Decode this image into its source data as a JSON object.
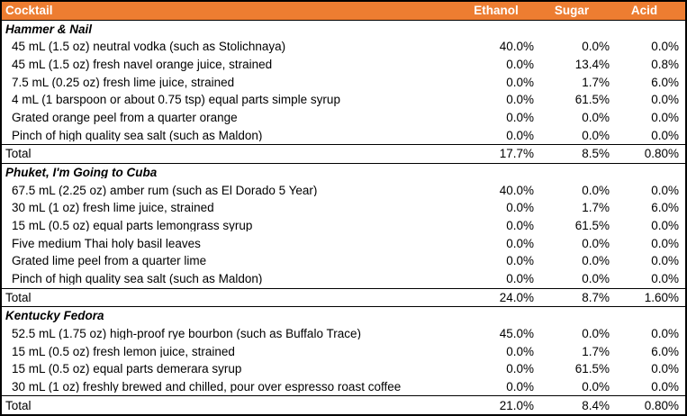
{
  "colors": {
    "header_bg": "#ED7D31",
    "header_text": "#FFFFFF",
    "border": "#000000"
  },
  "header": {
    "cocktail": "Cocktail",
    "ethanol": "Ethanol",
    "sugar": "Sugar",
    "acid": "Acid"
  },
  "sections": [
    {
      "name": "Hammer & Nail",
      "rows": [
        {
          "ingredient": "45 mL (1.5 oz) neutral vodka (such as Stolichnaya)",
          "ethanol": "40.0%",
          "sugar": "0.0%",
          "acid": "0.0%"
        },
        {
          "ingredient": "45 mL (1.5 oz) fresh navel orange juice, strained",
          "ethanol": "0.0%",
          "sugar": "13.4%",
          "acid": "0.8%"
        },
        {
          "ingredient": "7.5 mL (0.25 oz) fresh lime juice, strained",
          "ethanol": "0.0%",
          "sugar": "1.7%",
          "acid": "6.0%"
        },
        {
          "ingredient": "4 mL (1 barspoon or about 0.75 tsp) equal parts simple syrup",
          "ethanol": "0.0%",
          "sugar": "61.5%",
          "acid": "0.0%"
        },
        {
          "ingredient": "Grated orange peel from a quarter orange",
          "ethanol": "0.0%",
          "sugar": "0.0%",
          "acid": "0.0%"
        },
        {
          "ingredient": "Pinch of high quality sea salt (such as Maldon)",
          "ethanol": "0.0%",
          "sugar": "0.0%",
          "acid": "0.0%"
        }
      ],
      "total": {
        "label": "Total",
        "ethanol": "17.7%",
        "sugar": "8.5%",
        "acid": "0.80%"
      }
    },
    {
      "name": "Phuket, I'm Going to Cuba",
      "rows": [
        {
          "ingredient": "67.5 mL (2.25 oz) amber rum (such as El Dorado 5 Year)",
          "ethanol": "40.0%",
          "sugar": "0.0%",
          "acid": "0.0%"
        },
        {
          "ingredient": "30 mL (1 oz) fresh lime juice, strained",
          "ethanol": "0.0%",
          "sugar": "1.7%",
          "acid": "6.0%"
        },
        {
          "ingredient": "15 mL (0.5 oz) equal parts lemongrass syrup",
          "ethanol": "0.0%",
          "sugar": "61.5%",
          "acid": "0.0%"
        },
        {
          "ingredient": "Five medium Thai holy basil leaves",
          "ethanol": "0.0%",
          "sugar": "0.0%",
          "acid": "0.0%"
        },
        {
          "ingredient": "Grated lime peel from a quarter lime",
          "ethanol": "0.0%",
          "sugar": "0.0%",
          "acid": "0.0%"
        },
        {
          "ingredient": "Pinch of high quality sea salt (such as Maldon)",
          "ethanol": "0.0%",
          "sugar": "0.0%",
          "acid": "0.0%"
        }
      ],
      "total": {
        "label": "Total",
        "ethanol": "24.0%",
        "sugar": "8.7%",
        "acid": "1.60%"
      }
    },
    {
      "name": "Kentucky Fedora",
      "rows": [
        {
          "ingredient": "52.5 mL (1.75 oz) high-proof rye bourbon (such as Buffalo Trace)",
          "ethanol": "45.0%",
          "sugar": "0.0%",
          "acid": "0.0%"
        },
        {
          "ingredient": "15 mL (0.5 oz) fresh lemon juice, strained",
          "ethanol": "0.0%",
          "sugar": "1.7%",
          "acid": "6.0%"
        },
        {
          "ingredient": "15 mL (0.5 oz) equal parts demerara syrup",
          "ethanol": "0.0%",
          "sugar": "61.5%",
          "acid": "0.0%"
        },
        {
          "ingredient": "30 mL (1 oz) freshly brewed and chilled, pour over espresso roast coffee",
          "ethanol": "0.0%",
          "sugar": "0.0%",
          "acid": "0.0%"
        }
      ],
      "total": {
        "label": "Total",
        "ethanol": "21.0%",
        "sugar": "8.4%",
        "acid": "0.80%"
      }
    }
  ]
}
